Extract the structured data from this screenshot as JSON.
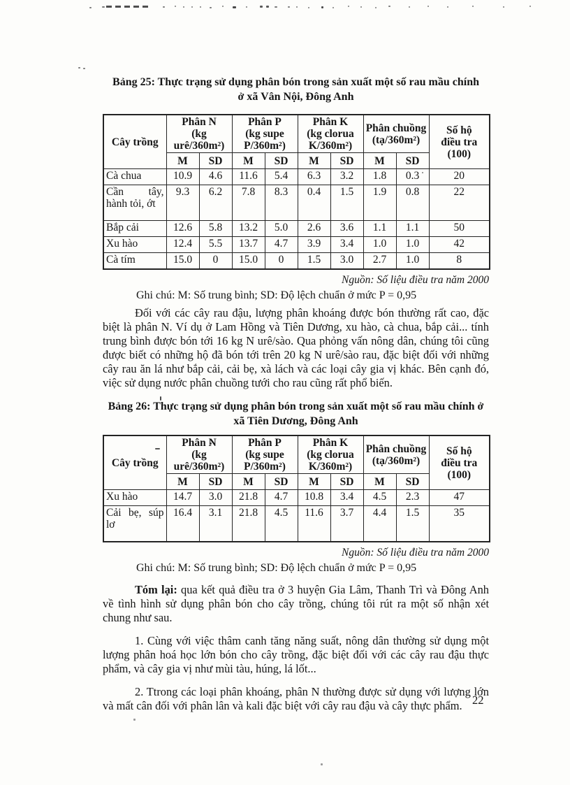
{
  "page_number": "22",
  "notes": {
    "source": "Nguồn: Số liệu điều tra năm 2000",
    "legend": "Ghi chú: M: Số trung bình; SD: Độ lệch chuẩn ở mức P = 0,95"
  },
  "tables": [
    {
      "title": "Bảng 25: Thực trạng sử dụng phân bón trong sản xuất một số rau mầu chính\nở xã Vân Nội, Đông Anh",
      "header": {
        "crop": "Cây trồng",
        "groups": [
          "Phân N\n(kg\nurê/360m²)",
          "Phân P\n(kg supe\nP/360m²)",
          "Phân K\n(kg clorua\nK/360m²)",
          "Phân chuồng\n(tạ/360m²)"
        ],
        "subheaders": [
          "M",
          "SD",
          "M",
          "SD",
          "M",
          "SD",
          "M",
          "SD"
        ],
        "households": "Số hộ\nđiều tra\n(100)"
      },
      "rows": [
        {
          "crop": "Cà chua",
          "values": [
            "10.9",
            "4.6",
            "11.6",
            "5.4",
            "6.3",
            "3.2",
            "1.8",
            "0.3",
            "20"
          ],
          "tall": false
        },
        {
          "crop": "Cần tây, hành tỏi, ớt",
          "values": [
            "9.3",
            "6.2",
            "7.8",
            "8.3",
            "0.4",
            "1.5",
            "1.9",
            "0.8",
            "22"
          ],
          "tall": true
        },
        {
          "crop": "Bắp cải",
          "values": [
            "12.6",
            "5.8",
            "13.2",
            "5.0",
            "2.6",
            "3.6",
            "1.1",
            "1.1",
            "50"
          ],
          "tall": false
        },
        {
          "crop": "Xu hào",
          "values": [
            "12.4",
            "5.5",
            "13.7",
            "4.7",
            "3.9",
            "3.4",
            "1.0",
            "1.0",
            "42"
          ],
          "tall": false
        },
        {
          "crop": "Cà tím",
          "values": [
            "15.0",
            "0",
            "15.0",
            "0",
            "1.5",
            "3.0",
            "2.7",
            "1.0",
            "8"
          ],
          "tall": false
        }
      ]
    },
    {
      "title": "Bảng 26: Thực trạng sử dụng phân bón trong sản xuất một số rau mầu chính ở\nxã Tiên Dương, Đông Anh",
      "header": {
        "crop": "Cây trồng",
        "groups": [
          "Phân N\n(kg\nurê/360m²)",
          "Phân P\n(kg supe\nP/360m²)",
          "Phân K\n(kg clorua\nK/360m²)",
          "Phân chuồng\n(tạ/360m²)"
        ],
        "subheaders": [
          "M",
          "SD",
          "M",
          "SD",
          "M",
          "SD",
          "M",
          "SD"
        ],
        "households": "Số hộ\nđiều tra\n(100)"
      },
      "rows": [
        {
          "crop": "Xu hào",
          "values": [
            "14.7",
            "3.0",
            "21.8",
            "4.7",
            "10.8",
            "3.4",
            "4.5",
            "2.3",
            "47"
          ],
          "tall": false
        },
        {
          "crop": "Cải bẹ, súp lơ",
          "values": [
            "16.4",
            "3.1",
            "21.8",
            "4.5",
            "11.6",
            "3.7",
            "4.4",
            "1.5",
            "35"
          ],
          "tall": true
        }
      ]
    }
  ],
  "paragraphs": {
    "p1": "Đối với các cây rau đậu, lượng phân khoáng được bón thường rất cao, đặc biệt là phân N. Ví dụ ở Lam Hồng và Tiên Dương, xu hào, cà chua, bắp cải... tính trung bình được bón tới 16 kg N urê/sào. Qua phỏng vấn nông dân, chúng tôi cũng được biết có những hộ đã bón tới trên 20 kg N urê/sào rau, đặc biệt đối với những cây rau ăn lá như bắp cải, cải bẹ, xà lách và các loại cây gia vị khác. Bên cạnh đó, việc sử dụng nước phân chuồng tưới cho rau cũng rất phổ biến.",
    "summary_lead": "Tóm lại:",
    "summary_rest": " qua kết quả điều tra ở 3 huyện Gia Lâm, Thanh Trì và Đông Anh về tình hình sử dụng phân bón cho cây trồng, chúng tôi rút ra một số nhận xét chung như sau.",
    "item1": "1.  Cùng với việc thâm canh tăng năng suất, nông dân thường sử dụng một lượng phân hoá học lớn bón cho cây trồng, đặc biệt đối với các cây rau đậu thực phẩm, và cây gia vị như mùi tàu, húng, lá lốt...",
    "item2": "2.  Ttrong các loại phân khoáng, phân N thường được sử dụng với lượng lớn và mất cân đối với phân lân và kali đặc biệt với cây rau đậu và cây thực phẩm."
  }
}
